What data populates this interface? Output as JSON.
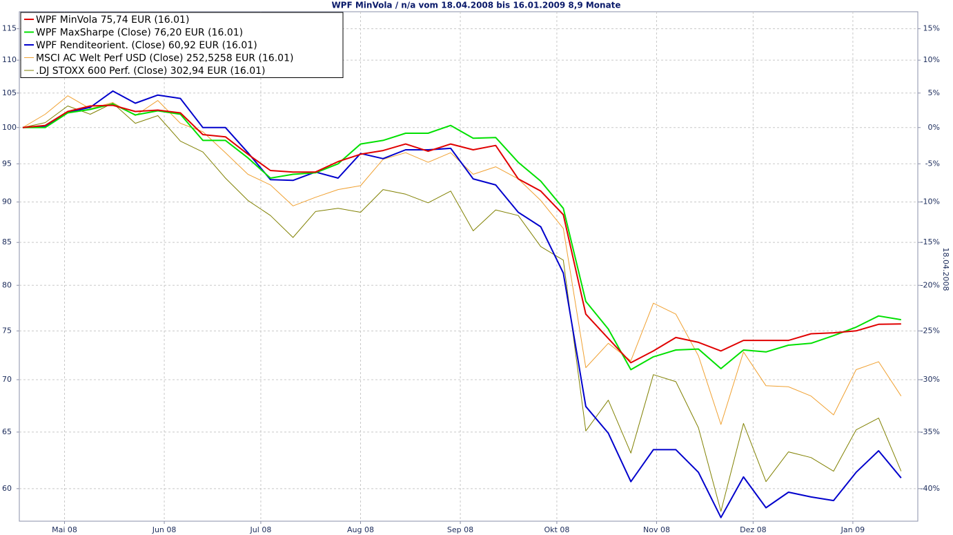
{
  "chart_data": {
    "type": "line",
    "title": "WPF MinVola / n/a vom 18.04.2008 bis 16.01.2009 8,9 Monate",
    "y2label": "18.04.2008",
    "log": true,
    "grid": true,
    "legend": "upper left",
    "x": [
      0,
      1,
      2,
      3,
      4,
      5,
      6,
      7,
      8,
      9,
      10,
      11,
      12,
      13,
      14,
      15,
      16,
      17,
      18,
      19,
      20,
      21,
      22,
      23,
      24,
      25,
      26,
      27,
      28,
      29,
      30,
      31,
      32,
      33,
      34,
      35,
      36,
      37,
      38,
      39
    ],
    "xlim": [
      -0.15,
      39.74
    ],
    "xticks": [
      {
        "value": 1.857,
        "label": "Mai 08"
      },
      {
        "value": 6.286,
        "label": "Jun 08"
      },
      {
        "value": 10.571,
        "label": "Jul 08"
      },
      {
        "value": 15,
        "label": "Aug 08"
      },
      {
        "value": 19.429,
        "label": "Sep 08"
      },
      {
        "value": 23.714,
        "label": "Okt 08"
      },
      {
        "value": 28.143,
        "label": "Nov 08"
      },
      {
        "value": 32.429,
        "label": "Dez 08"
      },
      {
        "value": 36.857,
        "label": "Jan 09"
      }
    ],
    "ylim": [
      57.3,
      117.8
    ],
    "yticks": [
      60,
      65,
      70,
      75,
      80,
      85,
      90,
      95,
      100,
      105,
      110,
      115
    ],
    "y2lim": [
      -42.7,
      17.8
    ],
    "y2ticks": [
      {
        "value": -40,
        "label": "-40%"
      },
      {
        "value": -35,
        "label": "-35%"
      },
      {
        "value": -30,
        "label": "-30%"
      },
      {
        "value": -25,
        "label": "-25%"
      },
      {
        "value": -20,
        "label": "-20%"
      },
      {
        "value": -15,
        "label": "-15%"
      },
      {
        "value": -10,
        "label": "-10%"
      },
      {
        "value": -5,
        "label": "-5%"
      },
      {
        "value": 0,
        "label": "0%"
      },
      {
        "value": 5,
        "label": "5%"
      },
      {
        "value": 10,
        "label": "10%"
      },
      {
        "value": 15,
        "label": "15%"
      }
    ],
    "series": [
      {
        "name": "WPF MinVola 75,74 EUR (16.01)",
        "color": "#e00000",
        "width": 2,
        "values": [
          100,
          100.3,
          102.3,
          103.1,
          103.2,
          102.3,
          102.5,
          102.1,
          99.0,
          98.7,
          96.3,
          94.1,
          93.9,
          93.9,
          95.3,
          96.3,
          96.8,
          97.7,
          96.7,
          97.7,
          96.9,
          97.5,
          93.0,
          91.4,
          88.4,
          76.8,
          74.2,
          71.7,
          72.9,
          74.3,
          73.8,
          72.9,
          74.0,
          74.0,
          74.0,
          74.7,
          74.8,
          75.0,
          75.7,
          75.74
        ]
      },
      {
        "name": "WPF MaxSharpe (Close) 76,20 EUR (16.01)",
        "color": "#00e000",
        "width": 2,
        "values": [
          100,
          100,
          102.1,
          102.6,
          103.4,
          101.8,
          102.4,
          101.9,
          98.2,
          98.2,
          95.8,
          93.1,
          93.6,
          93.8,
          95.0,
          97.7,
          98.2,
          99.2,
          99.2,
          100.3,
          98.5,
          98.6,
          95.2,
          92.7,
          89.2,
          78.2,
          75.2,
          71.0,
          72.3,
          73.0,
          73.1,
          71.1,
          73.0,
          72.8,
          73.5,
          73.7,
          74.5,
          75.4,
          76.6,
          76.2
        ]
      },
      {
        "name": "WPF Renditeorient. (Close) 60,92 EUR (16.01)",
        "color": "#0000cc",
        "width": 2,
        "values": [
          100,
          100.2,
          102.2,
          102.9,
          105.3,
          103.5,
          104.7,
          104.2,
          100,
          100,
          96.5,
          92.9,
          92.8,
          93.9,
          93.1,
          96.4,
          95.7,
          96.9,
          96.9,
          97.1,
          93.0,
          92.2,
          88.7,
          86.9,
          81.4,
          67.4,
          64.9,
          60.6,
          63.4,
          63.4,
          61.4,
          57.6,
          61.0,
          58.4,
          59.7,
          59.3,
          59.0,
          61.4,
          63.3,
          60.92
        ]
      },
      {
        "name": "MSCI AC Welt Perf USD (Close) 252,5258 EUR (16.01)",
        "color": "#f0a030",
        "width": 1,
        "values": [
          100,
          101.9,
          104.6,
          102.7,
          103.6,
          101.7,
          103.9,
          100.6,
          99.4,
          96.5,
          93.6,
          92.2,
          89.5,
          90.6,
          91.6,
          92.1,
          95.6,
          96.5,
          95.2,
          96.5,
          93.6,
          94.6,
          93.0,
          90.2,
          86.7,
          71.2,
          73.7,
          71.9,
          78.0,
          76.8,
          72.4,
          65.7,
          72.8,
          69.4,
          69.3,
          68.4,
          66.6,
          71.0,
          71.8,
          68.4
        ]
      },
      {
        "name": ".DJ STOXX 600 Perf. (Close) 302,94 EUR (16.01)",
        "color": "#808000",
        "width": 1,
        "values": [
          100,
          100.7,
          103.1,
          101.9,
          103.5,
          100.6,
          101.7,
          98.1,
          96.6,
          93.1,
          90.2,
          88.3,
          85.6,
          88.8,
          89.2,
          88.7,
          91.6,
          91.0,
          89.9,
          91.4,
          86.4,
          89.0,
          88.3,
          84.5,
          82.9,
          65.1,
          68.0,
          63.1,
          70.5,
          69.8,
          65.4,
          58.1,
          65.8,
          60.6,
          63.2,
          62.7,
          61.5,
          65.2,
          66.3,
          61.5
        ]
      }
    ]
  }
}
